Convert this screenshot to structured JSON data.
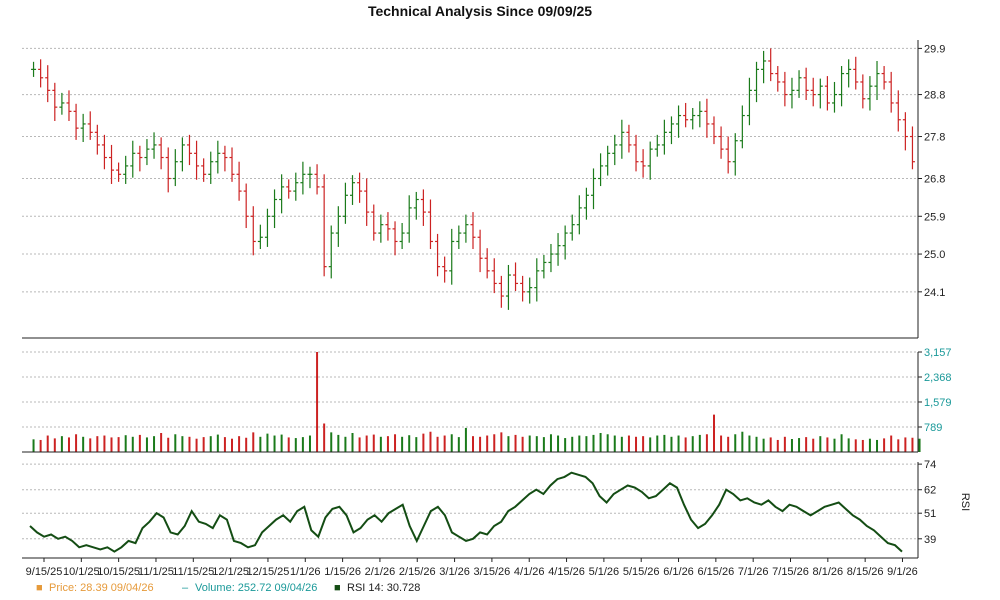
{
  "chart_data": {
    "type": "ohlc",
    "title": "Technical Analysis Since 09/09/25",
    "colors": {
      "up": "#1a7a1a",
      "down": "#cc2222",
      "rsi": "#144d14",
      "grid": "#b8b8b8",
      "axis": "#222222",
      "volume_tick": "#1a9999",
      "price_legend": "#e69a3a"
    },
    "price_panel": {
      "ylim": [
        23.0,
        30.1
      ],
      "ticks": [
        "29.9",
        "28.8",
        "27.8",
        "26.8",
        "25.9",
        "25.0",
        "24.1"
      ],
      "tick_values": [
        29.9,
        28.8,
        27.8,
        26.8,
        25.9,
        25.0,
        24.1
      ],
      "series": [
        {
          "name": "Price",
          "values": [
            29.4,
            29.2,
            28.9,
            28.5,
            28.6,
            28.4,
            28.0,
            28.1,
            27.9,
            27.6,
            27.3,
            27.0,
            26.9,
            27.1,
            27.4,
            27.3,
            27.5,
            27.6,
            27.3,
            26.8,
            27.2,
            27.6,
            27.4,
            27.1,
            26.9,
            27.2,
            27.4,
            27.3,
            26.9,
            26.5,
            25.9,
            25.3,
            25.4,
            25.9,
            26.3,
            26.6,
            26.5,
            26.7,
            26.9,
            26.9,
            26.6,
            24.7,
            25.5,
            25.9,
            26.4,
            26.7,
            26.5,
            26.0,
            25.5,
            25.7,
            25.6,
            25.3,
            25.5,
            26.1,
            26.3,
            26.0,
            25.3,
            24.7,
            24.6,
            25.3,
            25.5,
            25.7,
            25.4,
            24.9,
            24.6,
            24.3,
            24.0,
            24.5,
            24.3,
            24.1,
            24.2,
            24.6,
            24.8,
            25.0,
            25.2,
            25.5,
            25.7,
            26.1,
            26.4,
            26.8,
            27.1,
            27.4,
            27.6,
            27.9,
            27.6,
            27.2,
            27.1,
            27.5,
            27.6,
            27.9,
            28.1,
            28.3,
            28.2,
            28.3,
            28.4,
            28.1,
            27.8,
            27.5,
            27.2,
            27.7,
            28.3,
            28.9,
            29.4,
            29.6,
            29.3,
            29.1,
            28.8,
            28.9,
            29.2,
            28.9,
            28.8,
            29.0,
            28.6,
            28.8,
            29.3,
            29.4,
            29.1,
            28.7,
            29.0,
            29.3,
            29.1,
            28.6,
            28.2,
            27.8,
            27.2
          ]
        }
      ]
    },
    "volume_panel": {
      "ylim": [
        0,
        3157
      ],
      "ticks": [
        "3,157",
        "2,368",
        "1,579",
        "789"
      ],
      "tick_values": [
        3157,
        2368,
        1579,
        789
      ],
      "series": [
        {
          "name": "Volume",
          "values": [
            400,
            380,
            520,
            430,
            500,
            460,
            560,
            480,
            430,
            500,
            520,
            460,
            470,
            530,
            480,
            540,
            460,
            500,
            600,
            450,
            560,
            500,
            480,
            420,
            470,
            500,
            550,
            470,
            420,
            500,
            450,
            620,
            480,
            580,
            520,
            550,
            460,
            440,
            470,
            520,
            3157,
            900,
            620,
            540,
            480,
            600,
            460,
            520,
            550,
            480,
            500,
            560,
            480,
            530,
            470,
            580,
            640,
            480,
            520,
            560,
            470,
            760,
            500,
            480,
            520,
            560,
            620,
            500,
            540,
            480,
            520,
            500,
            470,
            560,
            520,
            440,
            480,
            520,
            500,
            540,
            600,
            560,
            520,
            480,
            520,
            480,
            500,
            460,
            520,
            540,
            480,
            520,
            460,
            500,
            540,
            560,
            1180,
            520,
            480,
            560,
            640,
            520,
            480,
            420,
            460,
            380,
            480,
            410,
            440,
            470,
            420,
            500,
            460,
            420,
            560,
            430,
            400,
            380,
            420,
            380,
            430,
            520,
            400,
            460,
            450,
            420
          ]
        }
      ]
    },
    "rsi_panel": {
      "ylim": [
        30,
        75
      ],
      "ticks": [
        "74",
        "62",
        "51",
        "39"
      ],
      "tick_values": [
        74,
        62,
        51,
        39
      ],
      "label": "RSI",
      "series": [
        {
          "name": "RSI 14",
          "values": [
            45,
            42,
            40,
            41,
            39,
            40,
            38,
            35,
            36,
            35,
            34,
            35,
            33,
            35,
            38,
            37,
            44,
            47,
            51,
            49,
            42,
            41,
            45,
            52,
            47,
            46,
            44,
            50,
            48,
            38,
            37,
            35,
            36,
            42,
            45,
            48,
            50,
            47,
            52,
            54,
            43,
            40,
            49,
            53,
            54,
            50,
            42,
            44,
            48,
            50,
            47,
            51,
            53,
            55,
            45,
            38,
            45,
            52,
            54,
            50,
            42,
            40,
            38,
            39,
            42,
            41,
            45,
            47,
            52,
            54,
            57,
            60,
            62,
            60,
            64,
            67,
            68,
            70,
            69,
            68,
            65,
            59,
            56,
            60,
            62,
            64,
            63,
            61,
            58,
            59,
            62,
            65,
            63,
            55,
            48,
            44,
            46,
            50,
            55,
            62,
            60,
            57,
            58,
            56,
            55,
            57,
            54,
            52,
            55,
            54,
            52,
            50,
            52,
            54,
            55,
            56,
            53,
            50,
            48,
            45,
            43,
            40,
            37,
            36,
            33
          ]
        }
      ]
    },
    "x_ticks": [
      "9/15/25",
      "10/1/25",
      "10/15/25",
      "11/1/25",
      "11/15/25",
      "12/1/25",
      "12/15/25",
      "1/1/26",
      "1/15/26",
      "2/1/26",
      "2/15/26",
      "3/1/26",
      "3/15/26",
      "4/1/26",
      "4/15/26",
      "5/1/26",
      "5/15/26",
      "6/1/26",
      "6/15/26",
      "7/1/26",
      "7/15/26",
      "8/1/26",
      "8/15/26",
      "9/1/26"
    ],
    "legend": [
      {
        "marker": "■",
        "label": "Price: 28.39  09/04/26",
        "color": "#e69a3a"
      },
      {
        "marker": "–",
        "label": "Volume: 252.72  09/04/26",
        "color": "#1a9999"
      },
      {
        "marker": "■",
        "label": "RSI 14: 30.728",
        "color": "#144d14"
      }
    ]
  }
}
